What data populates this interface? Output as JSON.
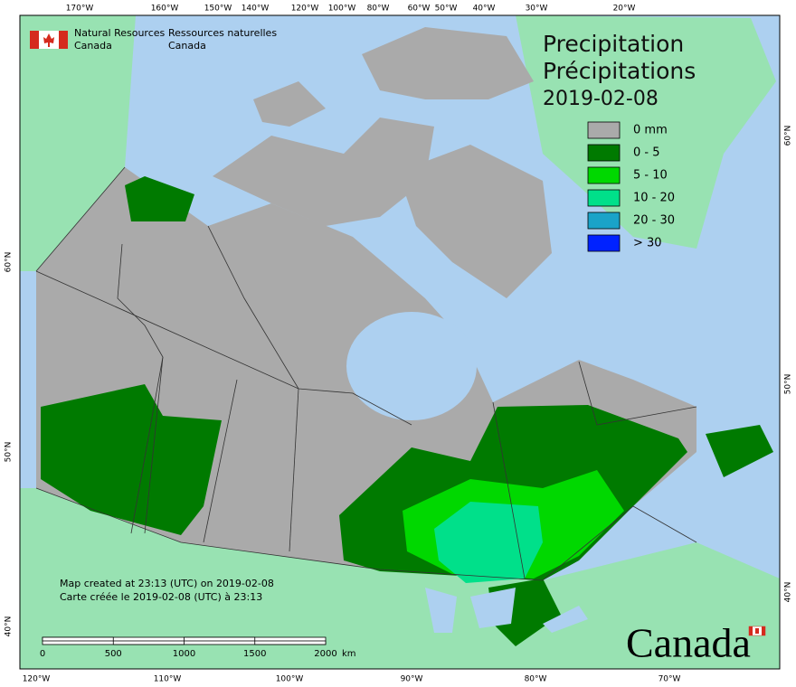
{
  "header": {
    "agency_en": [
      "Natural Resources",
      "Canada"
    ],
    "agency_fr": [
      "Ressources naturelles",
      "Canada"
    ]
  },
  "title": [
    "Precipitation",
    "Précipitations",
    "2019-02-08"
  ],
  "legend": [
    {
      "label": "0 mm",
      "color": "#aaaaaa"
    },
    {
      "label": "0 - 5",
      "color": "#007a00"
    },
    {
      "label": "5 - 10",
      "color": "#00d800"
    },
    {
      "label": "10 - 20",
      "color": "#00e08a"
    },
    {
      "label": "20 - 30",
      "color": "#1aa3c8"
    },
    {
      "label": "> 30",
      "color": "#0022ff"
    }
  ],
  "top_lon_labels": [
    "170°W",
    "160°W",
    "150°W",
    "140°W",
    "120°W",
    "100°W",
    "80°W",
    "60°W",
    "50°W",
    "40°W",
    "30°W",
    "20°W"
  ],
  "bottom_lon_labels": [
    "120°W",
    "110°W",
    "100°W",
    "90°W",
    "80°W",
    "70°W"
  ],
  "left_lat_labels": [
    "60°N",
    "50°N",
    "40°N"
  ],
  "right_lat_labels": [
    "60°N",
    "50°N",
    "40°N"
  ],
  "scale_bar": {
    "ticks": [
      "0",
      "500",
      "1000",
      "1500",
      "2000"
    ],
    "unit": "km"
  },
  "footer": [
    "Map created at 23:13 (UTC) on 2019-02-08",
    "Carte créée le 2019-02-08 (UTC) à 23:13"
  ],
  "wordmark": "Canada"
}
